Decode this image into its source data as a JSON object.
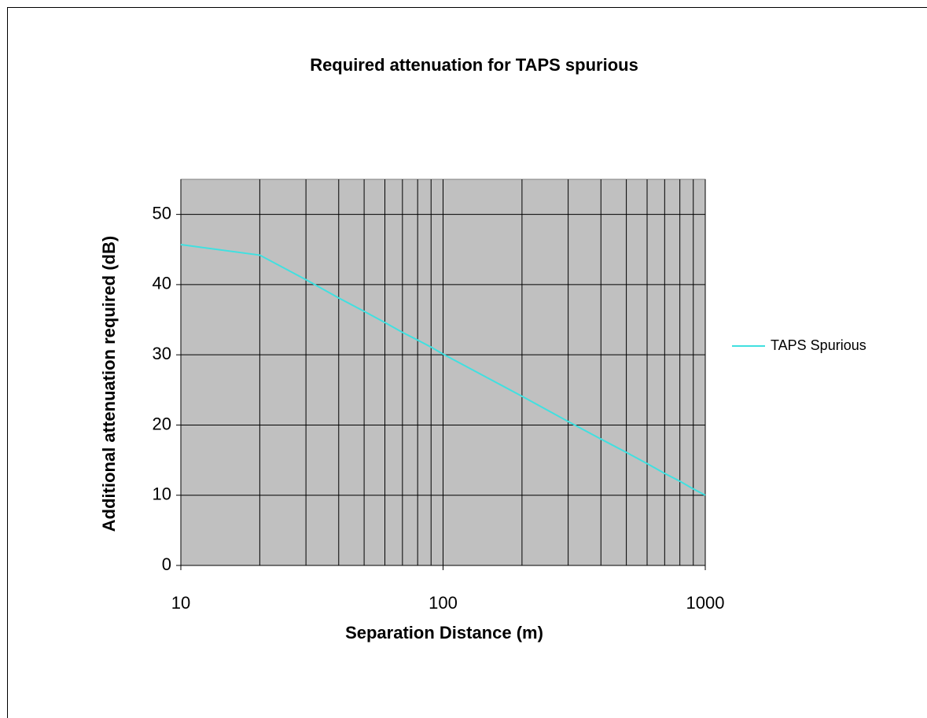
{
  "chart_data": {
    "type": "line",
    "title": "Required attenuation for TAPS spurious",
    "x_label": "Separation Distance (m)",
    "y_label": "Additional attenuation required (dB)",
    "x": [
      10,
      20,
      30,
      40,
      50,
      60,
      70,
      80,
      90,
      100,
      200,
      300,
      400,
      500,
      600,
      700,
      800,
      900,
      1000
    ],
    "series": [
      {
        "name": "TAPS Spurious",
        "color": "#40e0e0",
        "values": [
          45.7,
          44.2,
          40.7,
          38.1,
          36.2,
          34.6,
          33.2,
          32.1,
          31.1,
          30.1,
          24.1,
          20.5,
          18.0,
          16.1,
          14.5,
          13.1,
          12.0,
          10.9,
          10.0
        ]
      }
    ],
    "xlim": [
      10,
      1000
    ],
    "xticks": [
      10,
      100,
      1000
    ],
    "x_log": true,
    "xgrid": [
      10,
      20,
      30,
      40,
      50,
      60,
      70,
      80,
      90,
      100,
      200,
      300,
      400,
      500,
      600,
      700,
      800,
      900,
      1000
    ],
    "ylim": [
      0,
      55
    ],
    "yticks": [
      0,
      10,
      20,
      30,
      40,
      50
    ],
    "grid": true,
    "legend": "right"
  }
}
